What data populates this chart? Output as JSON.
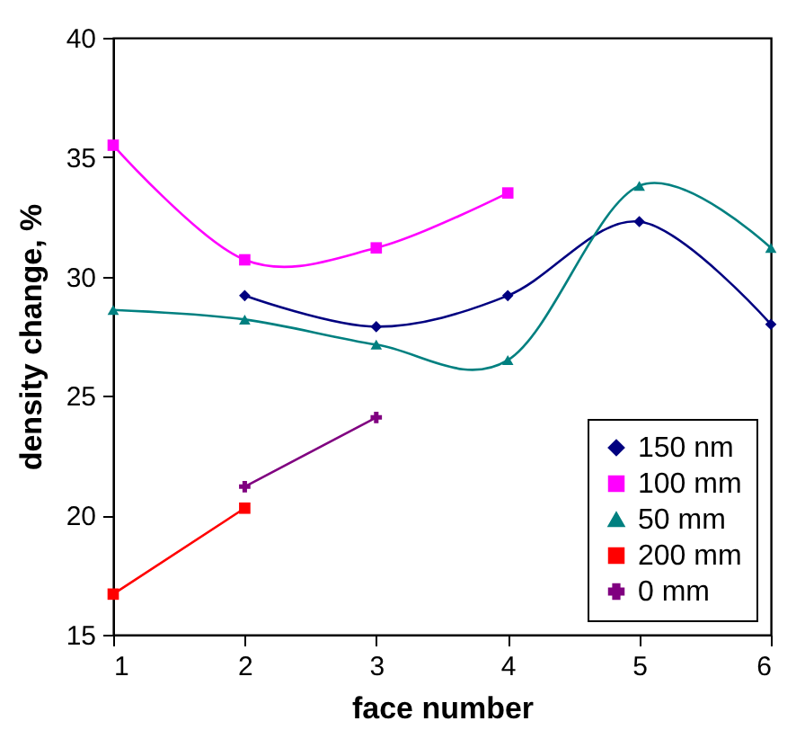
{
  "chart_data": {
    "type": "line",
    "xlabel": "face number",
    "ylabel": "density change, %",
    "x": [
      1,
      2,
      3,
      4,
      5,
      6
    ],
    "xlim": [
      1,
      6
    ],
    "xticks": [
      1,
      2,
      3,
      4,
      5,
      6
    ],
    "ylim": [
      15,
      40
    ],
    "yticks": [
      15,
      20,
      25,
      30,
      35,
      40
    ],
    "grid": false,
    "legend": "bottom right",
    "line_style": "solid",
    "series": [
      {
        "name": "150 nm",
        "color": "#000080",
        "marker": "diamond",
        "values": [
          null,
          29.2,
          27.9,
          29.2,
          32.3,
          28.0
        ]
      },
      {
        "name": "100 mm",
        "color": "#ff00ff",
        "marker": "square",
        "values": [
          35.5,
          30.7,
          31.2,
          33.5,
          null,
          null
        ]
      },
      {
        "name": "50 mm",
        "color": "#008080",
        "marker": "triangle",
        "values": [
          28.6,
          28.2,
          27.15,
          26.5,
          33.8,
          31.2
        ]
      },
      {
        "name": "200 mm",
        "color": "#ff0000",
        "marker": "square",
        "values": [
          16.7,
          20.3,
          null,
          null,
          null,
          null
        ]
      },
      {
        "name": "0 mm",
        "color": "#800080",
        "marker": "cross",
        "values": [
          null,
          21.2,
          24.1,
          null,
          null,
          null
        ]
      }
    ]
  }
}
